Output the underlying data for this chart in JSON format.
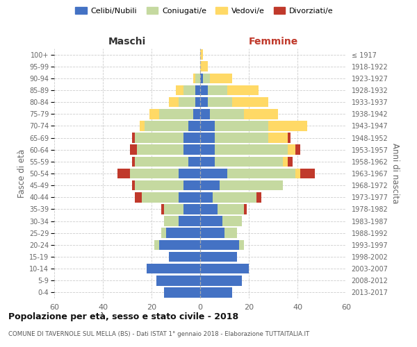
{
  "age_groups": [
    "0-4",
    "5-9",
    "10-14",
    "15-19",
    "20-24",
    "25-29",
    "30-34",
    "35-39",
    "40-44",
    "45-49",
    "50-54",
    "55-59",
    "60-64",
    "65-69",
    "70-74",
    "75-79",
    "80-84",
    "85-89",
    "90-94",
    "95-99",
    "100+"
  ],
  "birth_years": [
    "2013-2017",
    "2008-2012",
    "2003-2007",
    "1998-2002",
    "1993-1997",
    "1988-1992",
    "1983-1987",
    "1978-1982",
    "1973-1977",
    "1968-1972",
    "1963-1967",
    "1958-1962",
    "1953-1957",
    "1948-1952",
    "1943-1947",
    "1938-1942",
    "1933-1937",
    "1928-1932",
    "1923-1927",
    "1918-1922",
    "≤ 1917"
  ],
  "maschi_celibi": [
    15,
    18,
    22,
    13,
    17,
    14,
    9,
    7,
    9,
    7,
    9,
    5,
    7,
    7,
    5,
    3,
    2,
    2,
    0,
    0,
    0
  ],
  "maschi_coniugati": [
    0,
    0,
    0,
    0,
    2,
    2,
    6,
    8,
    15,
    20,
    20,
    22,
    19,
    20,
    18,
    14,
    7,
    5,
    2,
    0,
    0
  ],
  "maschi_vedovi": [
    0,
    0,
    0,
    0,
    0,
    0,
    0,
    0,
    0,
    0,
    0,
    0,
    0,
    0,
    2,
    4,
    4,
    3,
    1,
    0,
    0
  ],
  "maschi_divorziati": [
    0,
    0,
    0,
    0,
    0,
    0,
    0,
    1,
    3,
    1,
    5,
    1,
    3,
    1,
    0,
    0,
    0,
    0,
    0,
    0,
    0
  ],
  "femmine_celibi": [
    13,
    17,
    20,
    15,
    16,
    10,
    9,
    7,
    5,
    8,
    11,
    6,
    6,
    6,
    6,
    4,
    3,
    3,
    1,
    0,
    0
  ],
  "femmine_coniugati": [
    0,
    0,
    0,
    0,
    2,
    5,
    8,
    11,
    18,
    26,
    28,
    28,
    30,
    22,
    22,
    14,
    10,
    8,
    3,
    0,
    0
  ],
  "femmine_vedovi": [
    0,
    0,
    0,
    0,
    0,
    0,
    0,
    0,
    0,
    0,
    2,
    2,
    3,
    8,
    16,
    14,
    15,
    13,
    9,
    3,
    1
  ],
  "femmine_divorziati": [
    0,
    0,
    0,
    0,
    0,
    0,
    0,
    1,
    2,
    0,
    6,
    2,
    2,
    1,
    0,
    0,
    0,
    0,
    0,
    0,
    0
  ],
  "colors": {
    "celibi": "#4472C4",
    "coniugati": "#C5D9A0",
    "vedovi": "#FFD966",
    "divorziati": "#C0392B"
  },
  "title1": "Popolazione per età, sesso e stato civile - 2018",
  "title2": "COMUNE DI TAVERNOLE SUL MELLA (BS) - Dati ISTAT 1° gennaio 2018 - Elaborazione TUTTAITALIA.IT",
  "xlabel_maschi": "Maschi",
  "xlabel_femmine": "Femmine",
  "ylabel_left": "Fasce di età",
  "ylabel_right": "Anni di nascita",
  "xlim": 60,
  "background_color": "#FFFFFF",
  "grid_color": "#CCCCCC",
  "bar_height": 0.85
}
